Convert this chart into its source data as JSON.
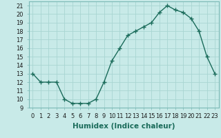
{
  "x": [
    0,
    1,
    2,
    3,
    4,
    5,
    6,
    7,
    8,
    9,
    10,
    11,
    12,
    13,
    14,
    15,
    16,
    17,
    18,
    19,
    20,
    21,
    22,
    23
  ],
  "y": [
    13,
    12,
    12,
    12,
    10,
    9.5,
    9.5,
    9.5,
    10,
    12,
    14.5,
    16,
    17.5,
    18,
    18.5,
    19,
    20.2,
    21,
    20.5,
    20.2,
    19.5,
    18,
    15,
    13
  ],
  "line_color": "#1a6b5a",
  "marker": "+",
  "bg_color": "#c8eae8",
  "grid_color": "#a8d5d2",
  "xlabel": "Humidex (Indice chaleur)",
  "ylim": [
    9,
    21.5
  ],
  "xlim": [
    -0.5,
    23.5
  ],
  "xticks": [
    0,
    1,
    2,
    3,
    4,
    5,
    6,
    7,
    8,
    9,
    10,
    11,
    12,
    13,
    14,
    15,
    16,
    17,
    18,
    19,
    20,
    21,
    22,
    23
  ],
  "yticks": [
    9,
    10,
    11,
    12,
    13,
    14,
    15,
    16,
    17,
    18,
    19,
    20,
    21
  ],
  "xlabel_fontsize": 7.5,
  "tick_fontsize": 6,
  "linewidth": 1.0,
  "markersize": 4,
  "markeredgewidth": 1.0
}
